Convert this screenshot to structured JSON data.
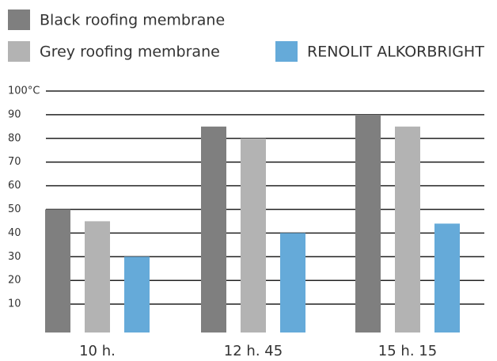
{
  "chart_data": {
    "type": "bar",
    "categories": [
      "10 h.",
      "12 h. 45",
      "15 h. 15"
    ],
    "series": [
      {
        "name": "Black roofing membrane",
        "color": "#7f7f7f",
        "values": [
          50,
          85,
          90
        ]
      },
      {
        "name": "Grey roofing membrane",
        "color": "#b3b3b3",
        "values": [
          45,
          80,
          85
        ]
      },
      {
        "name": "RENOLIT ALKORBRIGHT",
        "color": "#65aad9",
        "values": [
          30,
          40,
          44
        ]
      }
    ],
    "ylim": [
      0,
      100
    ],
    "yticks": [
      10,
      20,
      30,
      40,
      50,
      60,
      70,
      80,
      90,
      {
        "value": 100,
        "label": "100°C"
      }
    ],
    "grid": true
  }
}
